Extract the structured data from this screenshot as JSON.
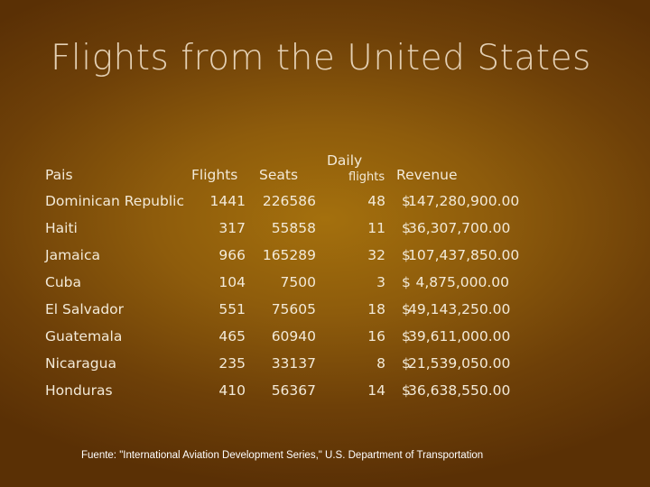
{
  "slide": {
    "title": "Flights from the United States"
  },
  "table": {
    "headers": {
      "country": "Pais",
      "flights": "Flights",
      "seats": "Seats",
      "daily_top": "Daily",
      "daily_bottom": "flights",
      "revenue": "Revenue"
    },
    "rows": [
      {
        "country": "Dominican Republic",
        "flights": "1441",
        "seats": "226586",
        "daily": "48",
        "rev_sign": "$",
        "revenue": "147,280,900.00"
      },
      {
        "country": "Haiti",
        "flights": "317",
        "seats": "55858",
        "daily": "11",
        "rev_sign": "$",
        "revenue": "36,307,700.00"
      },
      {
        "country": "Jamaica",
        "flights": "966",
        "seats": "165289",
        "daily": "32",
        "rev_sign": "$",
        "revenue": "107,437,850.00"
      },
      {
        "country": "Cuba",
        "flights": "104",
        "seats": "7500",
        "daily": "3",
        "rev_sign": "$",
        "revenue": "4,875,000.00"
      },
      {
        "country": "El Salvador",
        "flights": "551",
        "seats": "75605",
        "daily": "18",
        "rev_sign": "$",
        "revenue": "49,143,250.00"
      },
      {
        "country": "Guatemala",
        "flights": "465",
        "seats": "60940",
        "daily": "16",
        "rev_sign": "$",
        "revenue": "39,611,000.00"
      },
      {
        "country": "Nicaragua",
        "flights": "235",
        "seats": "33137",
        "daily": "8",
        "rev_sign": "$",
        "revenue": "21,539,050.00"
      },
      {
        "country": "Honduras",
        "flights": "410",
        "seats": "56367",
        "daily": "14",
        "rev_sign": "$",
        "revenue": "36,638,550.00"
      }
    ]
  },
  "footer": {
    "source": "Fuente: \"International Aviation Development Series,\" U.S. Department of Transportation"
  }
}
